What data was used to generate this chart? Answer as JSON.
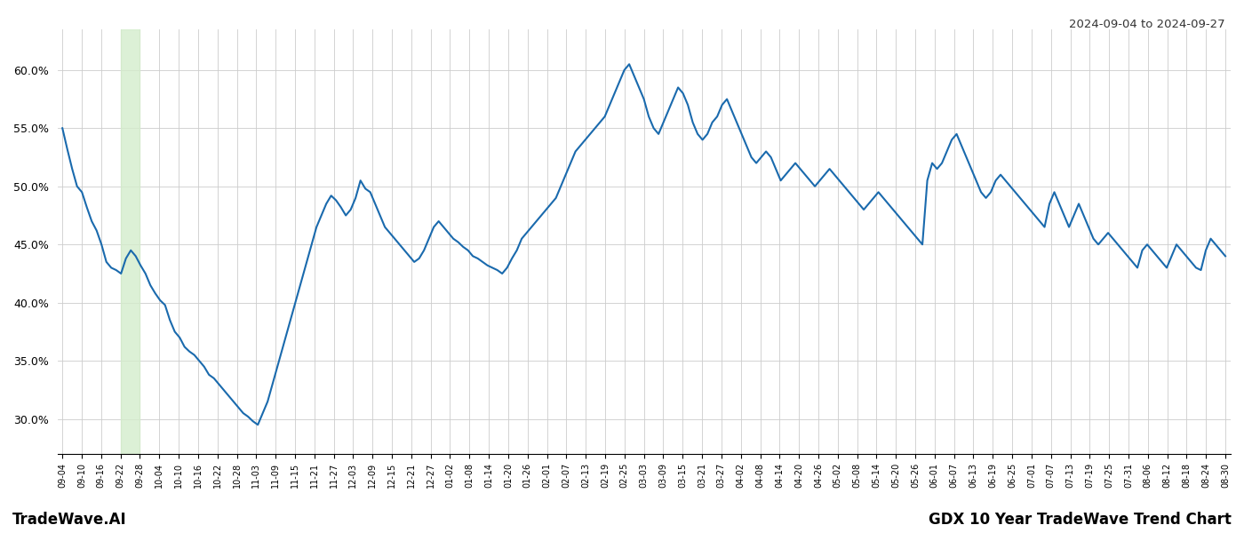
{
  "title_right": "2024-09-04 to 2024-09-27",
  "footer_left": "TradeWave.AI",
  "footer_right": "GDX 10 Year TradeWave Trend Chart",
  "line_color": "#1a6aad",
  "line_width": 1.5,
  "background_color": "#ffffff",
  "grid_color": "#cccccc",
  "highlight_color": "#d4edcc",
  "highlight_alpha": 0.8,
  "ylim": [
    27.0,
    63.5
  ],
  "yticks": [
    30.0,
    35.0,
    40.0,
    45.0,
    50.0,
    55.0,
    60.0
  ],
  "x_labels": [
    "09-04",
    "09-10",
    "09-16",
    "09-22",
    "09-28",
    "10-04",
    "10-10",
    "10-16",
    "10-22",
    "10-28",
    "11-03",
    "11-09",
    "11-15",
    "11-21",
    "11-27",
    "12-03",
    "12-09",
    "12-15",
    "12-21",
    "12-27",
    "01-02",
    "01-08",
    "01-14",
    "01-20",
    "01-26",
    "02-01",
    "02-07",
    "02-13",
    "02-19",
    "02-25",
    "03-03",
    "03-09",
    "03-15",
    "03-21",
    "03-27",
    "04-02",
    "04-08",
    "04-14",
    "04-20",
    "04-26",
    "05-02",
    "05-08",
    "05-14",
    "05-20",
    "05-26",
    "06-01",
    "06-07",
    "06-13",
    "06-19",
    "06-25",
    "07-01",
    "07-07",
    "07-13",
    "07-19",
    "07-25",
    "07-31",
    "08-06",
    "08-12",
    "08-18",
    "08-24",
    "08-30"
  ],
  "highlight_start_label": "09-22",
  "highlight_end_label": "09-28",
  "values": [
    55.0,
    53.2,
    51.5,
    50.0,
    49.5,
    48.2,
    47.0,
    46.2,
    45.0,
    43.5,
    43.0,
    42.8,
    42.5,
    43.8,
    44.5,
    44.0,
    43.2,
    42.5,
    41.5,
    40.8,
    40.2,
    39.8,
    38.5,
    37.5,
    37.0,
    36.2,
    35.8,
    35.5,
    35.0,
    34.5,
    33.8,
    33.5,
    33.0,
    32.5,
    32.0,
    31.5,
    31.0,
    30.5,
    30.2,
    29.8,
    29.5,
    30.5,
    31.5,
    33.0,
    34.5,
    36.0,
    37.5,
    39.0,
    40.5,
    42.0,
    43.5,
    45.0,
    46.5,
    47.5,
    48.5,
    49.2,
    48.8,
    48.2,
    47.5,
    48.0,
    49.0,
    50.5,
    49.8,
    49.5,
    48.5,
    47.5,
    46.5,
    46.0,
    45.5,
    45.0,
    44.5,
    44.0,
    43.5,
    43.8,
    44.5,
    45.5,
    46.5,
    47.0,
    46.5,
    46.0,
    45.5,
    45.2,
    44.8,
    44.5,
    44.0,
    43.8,
    43.5,
    43.2,
    43.0,
    42.8,
    42.5,
    43.0,
    43.8,
    44.5,
    45.5,
    46.0,
    46.5,
    47.0,
    47.5,
    48.0,
    48.5,
    49.0,
    50.0,
    51.0,
    52.0,
    53.0,
    53.5,
    54.0,
    54.5,
    55.0,
    55.5,
    56.0,
    57.0,
    58.0,
    59.0,
    60.0,
    60.5,
    59.5,
    58.5,
    57.5,
    56.0,
    55.0,
    54.5,
    55.5,
    56.5,
    57.5,
    58.5,
    58.0,
    57.0,
    55.5,
    54.5,
    54.0,
    54.5,
    55.5,
    56.0,
    57.0,
    57.5,
    56.5,
    55.5,
    54.5,
    53.5,
    52.5,
    52.0,
    52.5,
    53.0,
    52.5,
    51.5,
    50.5,
    51.0,
    51.5,
    52.0,
    51.5,
    51.0,
    50.5,
    50.0,
    50.5,
    51.0,
    51.5,
    51.0,
    50.5,
    50.0,
    49.5,
    49.0,
    48.5,
    48.0,
    48.5,
    49.0,
    49.5,
    49.0,
    48.5,
    48.0,
    47.5,
    47.0,
    46.5,
    46.0,
    45.5,
    45.0,
    50.5,
    52.0,
    51.5,
    52.0,
    53.0,
    54.0,
    54.5,
    53.5,
    52.5,
    51.5,
    50.5,
    49.5,
    49.0,
    49.5,
    50.5,
    51.0,
    50.5,
    50.0,
    49.5,
    49.0,
    48.5,
    48.0,
    47.5,
    47.0,
    46.5,
    48.5,
    49.5,
    48.5,
    47.5,
    46.5,
    47.5,
    48.5,
    47.5,
    46.5,
    45.5,
    45.0,
    45.5,
    46.0,
    45.5,
    45.0,
    44.5,
    44.0,
    43.5,
    43.0,
    44.5,
    45.0,
    44.5,
    44.0,
    43.5,
    43.0,
    44.0,
    45.0,
    44.5,
    44.0,
    43.5,
    43.0,
    42.8,
    44.5,
    45.5,
    45.0,
    44.5,
    44.0
  ]
}
